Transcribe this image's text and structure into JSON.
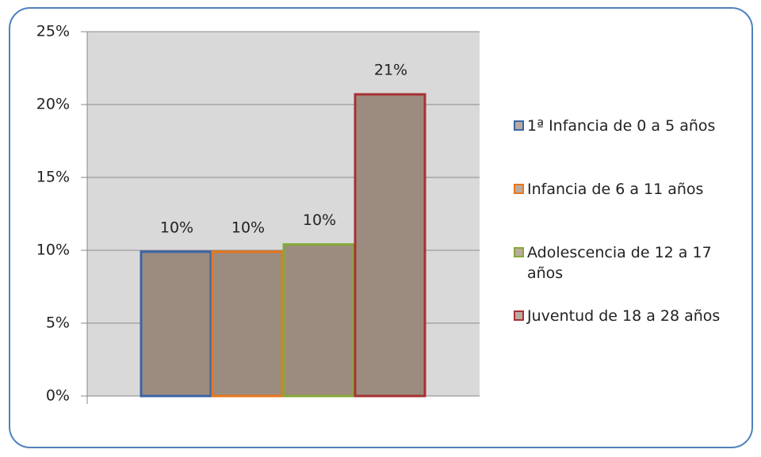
{
  "chart_data": {
    "type": "bar",
    "series": [
      {
        "name": "1ª Infancia de 0 a 5 años",
        "color": "#3c64a4",
        "values": [
          9.9
        ],
        "value_labels": [
          "10%"
        ]
      },
      {
        "name": "Infancia de 6 a 11 años",
        "color": "#e8761c",
        "values": [
          9.9
        ],
        "value_labels": [
          "10%"
        ]
      },
      {
        "name": "Adolescencia  de 12 a 17 años",
        "color": "#86a838",
        "values": [
          10.4
        ],
        "value_labels": [
          "10%"
        ]
      },
      {
        "name": "Juventud de 18 a 28 años",
        "color": "#a83232",
        "values": [
          20.7
        ],
        "value_labels": [
          "21%"
        ]
      }
    ],
    "ylim": [
      0,
      25
    ],
    "yticks": [
      {
        "value": 0,
        "label": "0%"
      },
      {
        "value": 5,
        "label": "5%"
      },
      {
        "value": 10,
        "label": "10%"
      },
      {
        "value": 15,
        "label": "15%"
      },
      {
        "value": 20,
        "label": "20%"
      },
      {
        "value": 25,
        "label": "25%"
      }
    ],
    "grid": true
  }
}
